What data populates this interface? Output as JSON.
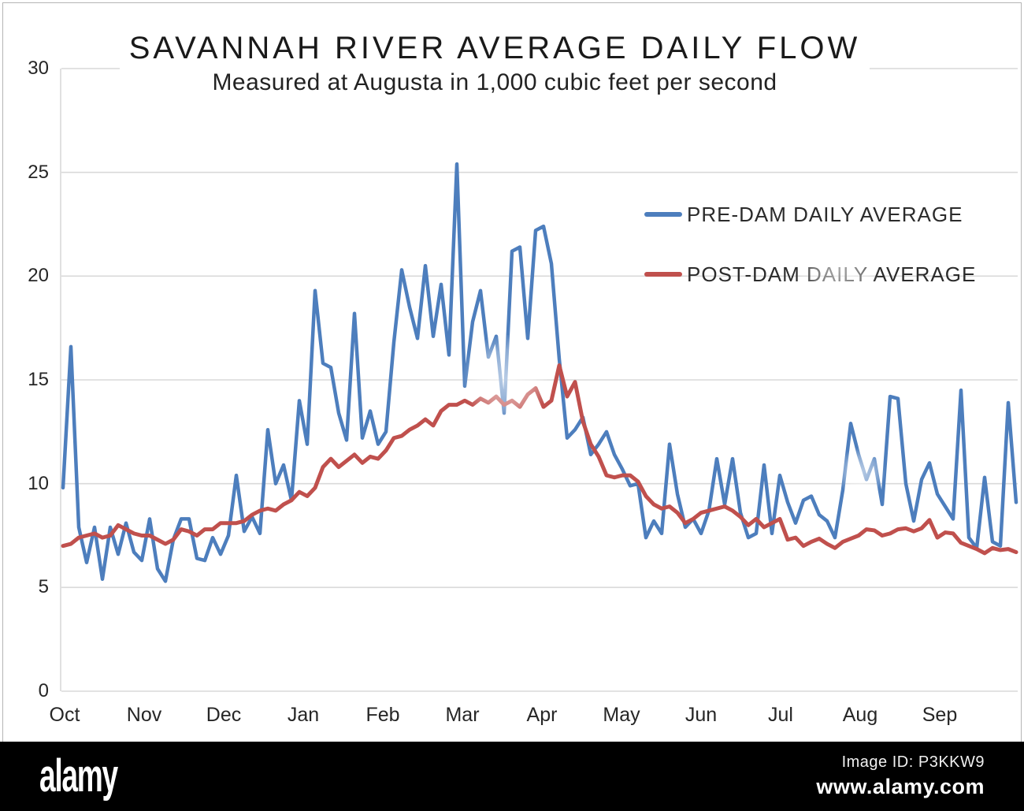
{
  "chart_data": {
    "type": "line",
    "title": "SAVANNAH RIVER AVERAGE DAILY FLOW",
    "subtitle": "Measured at Augusta in 1,000 cubic feet per second",
    "x_axis": {
      "categories": [
        "Oct",
        "Nov",
        "Dec",
        "Jan",
        "Feb",
        "Mar",
        "Apr",
        "May",
        "Jun",
        "Jul",
        "Aug",
        "Sep"
      ],
      "note": "one water year of daily flow, sampled approximately every 3 days"
    },
    "y_axis": {
      "min": 0,
      "max": 30,
      "ticks": [
        0,
        5,
        10,
        15,
        20,
        25,
        30
      ],
      "unit": "1,000 cubic feet per second"
    },
    "grid": "horizontal",
    "legend_position": "upper-right",
    "series": [
      {
        "name": "PRE-DAM DAILY AVERAGE",
        "color": "#4d7ebd",
        "values": [
          9.8,
          16.6,
          7.9,
          6.2,
          7.9,
          5.4,
          7.9,
          6.6,
          8.1,
          6.7,
          6.3,
          8.3,
          5.9,
          5.3,
          7.3,
          8.3,
          8.3,
          6.4,
          6.3,
          7.4,
          6.6,
          7.5,
          10.4,
          7.7,
          8.4,
          7.6,
          12.6,
          10.0,
          10.9,
          9.2,
          14.0,
          11.9,
          19.3,
          15.8,
          15.6,
          13.4,
          12.1,
          18.2,
          12.2,
          13.5,
          11.9,
          12.5,
          16.8,
          20.3,
          18.5,
          17.0,
          20.5,
          17.1,
          19.6,
          16.2,
          25.4,
          14.7,
          17.8,
          19.3,
          16.1,
          17.1,
          13.4,
          21.2,
          21.4,
          17.0,
          22.2,
          22.4,
          20.6,
          16.0,
          12.2,
          12.6,
          13.2,
          11.4,
          11.9,
          12.5,
          11.4,
          10.7,
          9.9,
          10.0,
          7.4,
          8.2,
          7.6,
          11.9,
          9.5,
          7.9,
          8.3,
          7.6,
          8.7,
          11.2,
          9.0,
          11.2,
          8.6,
          7.4,
          7.6,
          10.9,
          7.6,
          10.4,
          9.1,
          8.1,
          9.2,
          9.4,
          8.5,
          8.2,
          7.4,
          9.7,
          12.9,
          11.4,
          10.2,
          11.2,
          9.0,
          14.2,
          14.1,
          10.0,
          8.2,
          10.2,
          11.0,
          9.5,
          8.9,
          8.3,
          14.5,
          7.4,
          6.9,
          10.3,
          7.2,
          7.0,
          13.9,
          9.1
        ]
      },
      {
        "name": "POST-DAM DAILY AVERAGE",
        "color": "#c0504d",
        "values": [
          7.0,
          7.1,
          7.4,
          7.5,
          7.6,
          7.4,
          7.5,
          8.0,
          7.8,
          7.6,
          7.5,
          7.5,
          7.3,
          7.1,
          7.3,
          7.8,
          7.7,
          7.5,
          7.8,
          7.8,
          8.1,
          8.1,
          8.1,
          8.2,
          8.5,
          8.7,
          8.8,
          8.7,
          9.0,
          9.2,
          9.6,
          9.4,
          9.8,
          10.8,
          11.2,
          10.8,
          11.1,
          11.4,
          11.0,
          11.3,
          11.2,
          11.6,
          12.2,
          12.3,
          12.6,
          12.8,
          13.1,
          12.8,
          13.5,
          13.8,
          13.8,
          14.0,
          13.8,
          14.1,
          13.9,
          14.2,
          13.8,
          14.0,
          13.7,
          14.3,
          14.6,
          13.7,
          14.0,
          15.7,
          14.2,
          14.9,
          13.0,
          11.9,
          11.3,
          10.4,
          10.3,
          10.4,
          10.4,
          10.1,
          9.4,
          9.0,
          8.8,
          8.9,
          8.6,
          8.1,
          8.3,
          8.6,
          8.7,
          8.8,
          8.9,
          8.7,
          8.4,
          8.0,
          8.3,
          7.9,
          8.1,
          8.3,
          7.3,
          7.4,
          7.0,
          7.2,
          7.35,
          7.1,
          6.9,
          7.2,
          7.35,
          7.5,
          7.8,
          7.75,
          7.5,
          7.6,
          7.8,
          7.85,
          7.7,
          7.85,
          8.25,
          7.4,
          7.65,
          7.6,
          7.15,
          7.0,
          6.85,
          6.65,
          6.9,
          6.8,
          6.85,
          6.7
        ]
      }
    ]
  },
  "watermark": {
    "logo": "alamy",
    "image_id_label": "Image ID: P3KKW9",
    "url": "www.alamy.com"
  }
}
